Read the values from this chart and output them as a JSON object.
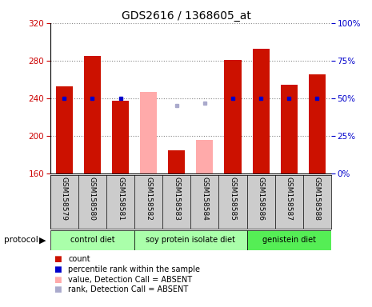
{
  "title": "GDS2616 / 1368605_at",
  "samples": [
    "GSM158579",
    "GSM158580",
    "GSM158581",
    "GSM158582",
    "GSM158583",
    "GSM158584",
    "GSM158585",
    "GSM158586",
    "GSM158587",
    "GSM158588"
  ],
  "count_values": [
    253,
    285,
    237,
    null,
    185,
    null,
    281,
    293,
    254,
    265
  ],
  "count_absent": [
    null,
    null,
    null,
    247,
    null,
    196,
    null,
    null,
    null,
    null
  ],
  "rank_present": [
    50,
    50,
    50,
    null,
    null,
    null,
    50,
    50,
    50,
    50
  ],
  "rank_absent": [
    null,
    null,
    null,
    null,
    45,
    47,
    null,
    null,
    null,
    null
  ],
  "ylim_left": [
    160,
    320
  ],
  "ylim_right": [
    0,
    100
  ],
  "yticks_left": [
    160,
    200,
    240,
    280,
    320
  ],
  "yticks_right": [
    0,
    25,
    50,
    75,
    100
  ],
  "bar_color_present": "#cc1100",
  "bar_color_absent": "#ffaaaa",
  "rank_color_present": "#0000cc",
  "rank_color_absent": "#aaaacc",
  "bar_width": 0.6,
  "grid_color": "#888888",
  "left_axis_color": "#cc0000",
  "right_axis_color": "#0000cc",
  "sample_bg_color": "#cccccc",
  "group_defs": [
    {
      "label": "control diet",
      "start": 0,
      "end": 3,
      "color": "#aaffaa"
    },
    {
      "label": "soy protein isolate diet",
      "start": 3,
      "end": 7,
      "color": "#aaffaa"
    },
    {
      "label": "genistein diet",
      "start": 7,
      "end": 10,
      "color": "#55ee55"
    }
  ],
  "legend_items": [
    {
      "color": "#cc1100",
      "label": "count"
    },
    {
      "color": "#0000cc",
      "label": "percentile rank within the sample"
    },
    {
      "color": "#ffaaaa",
      "label": "value, Detection Call = ABSENT"
    },
    {
      "color": "#aaaacc",
      "label": "rank, Detection Call = ABSENT"
    }
  ]
}
